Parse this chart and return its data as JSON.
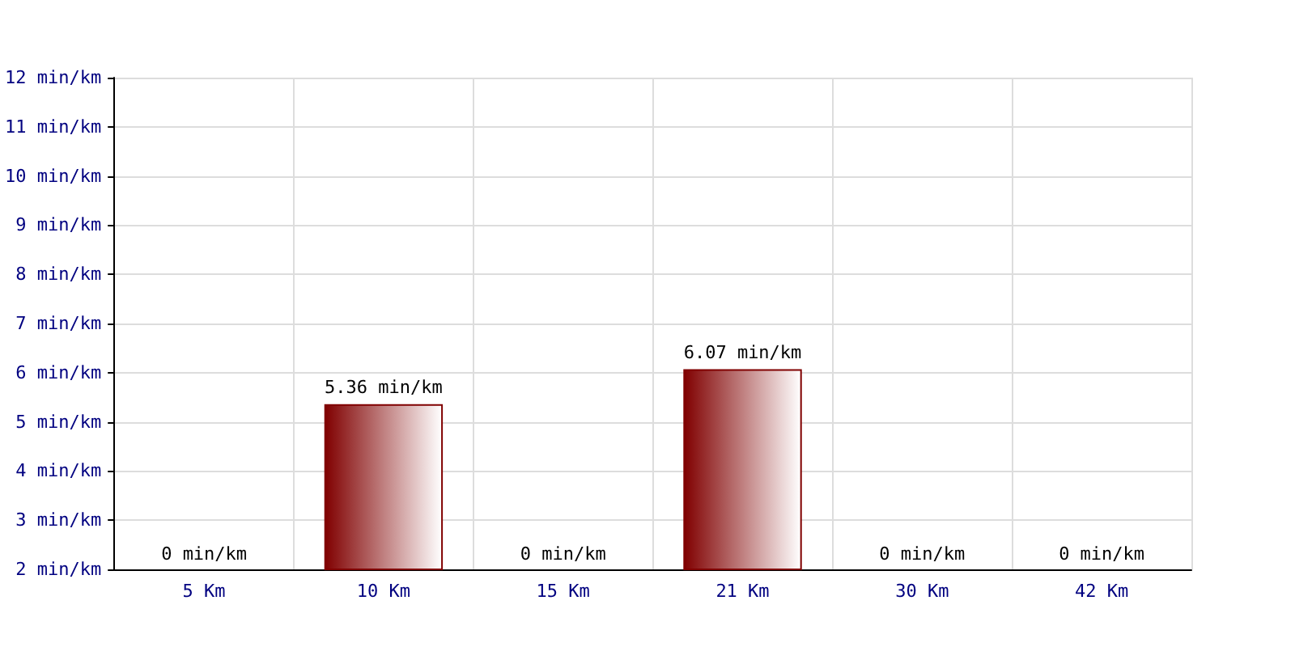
{
  "chart_data": {
    "type": "bar",
    "categories": [
      "5 Km",
      "10 Km",
      "15 Km",
      "21 Km",
      "30 Km",
      "42 Km"
    ],
    "values": [
      null,
      5.36,
      null,
      6.07,
      null,
      null
    ],
    "color": "#800000",
    "ylim": [
      2,
      12
    ],
    "yticks": [
      {
        "value": 2,
        "label": "2 min/km"
      },
      {
        "value": 3,
        "label": "3 min/km"
      },
      {
        "value": 4,
        "label": "4 min/km"
      },
      {
        "value": 5,
        "label": "5 min/km"
      },
      {
        "value": 6,
        "label": "6 min/km"
      },
      {
        "value": 7,
        "label": "7 min/km"
      },
      {
        "value": 8,
        "label": "8 min/km"
      },
      {
        "value": 9,
        "label": "9 min/km"
      },
      {
        "value": 10,
        "label": "10 min/km"
      },
      {
        "value": 11,
        "label": "11 min/km"
      },
      {
        "value": 12,
        "label": "12 min/km"
      }
    ],
    "value_labels": [
      "0 min/km",
      "5.36 min/km",
      "0 min/km",
      "6.07 min/km",
      "0 min/km",
      "0 min/km"
    ],
    "grid": true
  }
}
